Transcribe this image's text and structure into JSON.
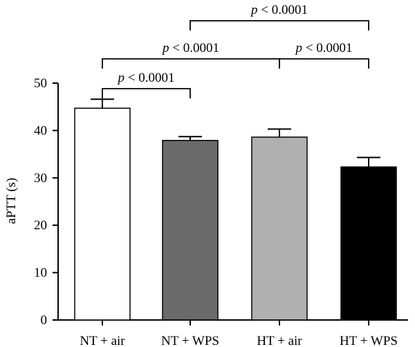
{
  "chart_data": {
    "type": "bar",
    "title": "",
    "xlabel": "",
    "ylabel": "aPTT (s)",
    "ylim": [
      0,
      50
    ],
    "yticks": [
      0,
      10,
      20,
      30,
      40,
      50
    ],
    "grid": false,
    "legend": "none",
    "categories": [
      "NT + air",
      "NT + WPS",
      "HT + air",
      "HT + WPS"
    ],
    "values": [
      44.7,
      37.9,
      38.6,
      32.3
    ],
    "errors": [
      1.9,
      0.8,
      1.7,
      2.0
    ],
    "bar_colors": [
      "#ffffff",
      "#6b6b6b",
      "#b0b0b0",
      "#000000"
    ],
    "comparisons": [
      {
        "from": 0,
        "to": 1,
        "label_p": "p",
        "label_rest": " < 0.0001"
      },
      {
        "from": 0,
        "to": 2,
        "label_p": "p",
        "label_rest": " < 0.0001"
      },
      {
        "from": 2,
        "to": 3,
        "label_p": "p",
        "label_rest": " < 0.0001"
      },
      {
        "from": 1,
        "to": 3,
        "label_p": "p",
        "label_rest": " < 0.0001"
      }
    ]
  }
}
